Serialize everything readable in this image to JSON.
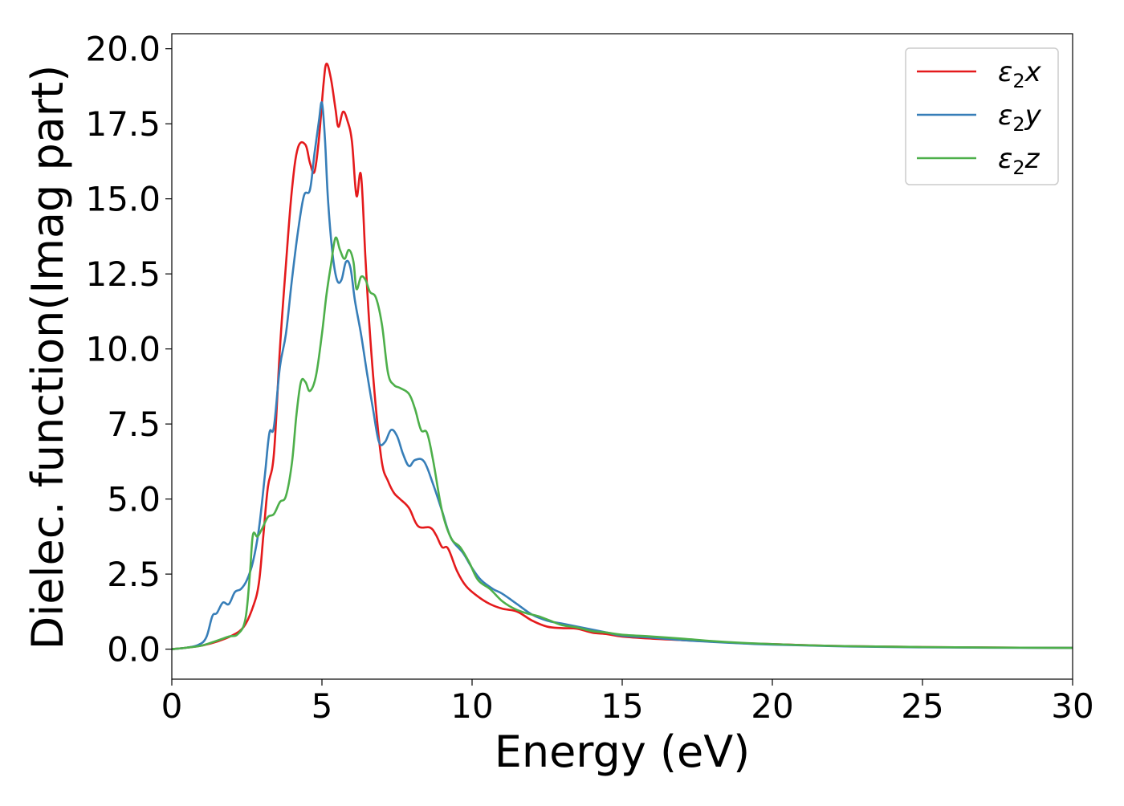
{
  "chart_data": {
    "type": "line",
    "title": "",
    "xlabel": "Energy (eV)",
    "ylabel": "Dielec. function(Imag part)",
    "xlim": [
      0,
      30
    ],
    "ylim": [
      -1,
      20.5
    ],
    "xticks": [
      0,
      5,
      10,
      15,
      20,
      25,
      30
    ],
    "yticks": [
      0.0,
      2.5,
      5.0,
      7.5,
      10.0,
      12.5,
      15.0,
      17.5,
      20.0
    ],
    "xtick_labels": [
      "0",
      "5",
      "10",
      "15",
      "20",
      "25",
      "30"
    ],
    "ytick_labels": [
      "0.0",
      "2.5",
      "5.0",
      "7.5",
      "10.0",
      "12.5",
      "15.0",
      "17.5",
      "20.0"
    ],
    "grid": false,
    "legend_position": "top-right",
    "series": [
      {
        "name_base": "ε",
        "name_sub": "2",
        "name_var": "x",
        "color": "#e41a1c",
        "points": [
          [
            0,
            0
          ],
          [
            0.5,
            0.05
          ],
          [
            1.0,
            0.12
          ],
          [
            1.5,
            0.25
          ],
          [
            2.0,
            0.45
          ],
          [
            2.4,
            0.75
          ],
          [
            2.7,
            1.4
          ],
          [
            2.9,
            2.2
          ],
          [
            3.05,
            3.8
          ],
          [
            3.2,
            5.4
          ],
          [
            3.4,
            6.5
          ],
          [
            3.6,
            10.0
          ],
          [
            3.8,
            12.8
          ],
          [
            4.0,
            15.3
          ],
          [
            4.2,
            16.7
          ],
          [
            4.45,
            16.8
          ],
          [
            4.6,
            16.2
          ],
          [
            4.75,
            15.9
          ],
          [
            4.9,
            17.0
          ],
          [
            5.05,
            18.8
          ],
          [
            5.15,
            19.5
          ],
          [
            5.3,
            19.0
          ],
          [
            5.45,
            18.0
          ],
          [
            5.55,
            17.4
          ],
          [
            5.7,
            17.9
          ],
          [
            5.85,
            17.6
          ],
          [
            6.0,
            16.9
          ],
          [
            6.15,
            15.1
          ],
          [
            6.3,
            15.8
          ],
          [
            6.45,
            13.0
          ],
          [
            6.6,
            10.5
          ],
          [
            6.8,
            8.0
          ],
          [
            7.0,
            6.2
          ],
          [
            7.2,
            5.6
          ],
          [
            7.4,
            5.2
          ],
          [
            7.6,
            5.0
          ],
          [
            7.9,
            4.7
          ],
          [
            8.2,
            4.1
          ],
          [
            8.6,
            4.05
          ],
          [
            8.8,
            3.8
          ],
          [
            9.0,
            3.4
          ],
          [
            9.2,
            3.35
          ],
          [
            9.5,
            2.6
          ],
          [
            9.8,
            2.1
          ],
          [
            10.2,
            1.75
          ],
          [
            10.6,
            1.5
          ],
          [
            11.0,
            1.35
          ],
          [
            11.5,
            1.25
          ],
          [
            12.0,
            0.95
          ],
          [
            12.5,
            0.75
          ],
          [
            13.0,
            0.7
          ],
          [
            13.5,
            0.68
          ],
          [
            14.0,
            0.55
          ],
          [
            14.5,
            0.5
          ],
          [
            15.0,
            0.42
          ],
          [
            16.0,
            0.35
          ],
          [
            17.0,
            0.3
          ],
          [
            18.0,
            0.25
          ],
          [
            19.0,
            0.2
          ],
          [
            20.0,
            0.17
          ],
          [
            22.0,
            0.11
          ],
          [
            25.0,
            0.07
          ],
          [
            30.0,
            0.04
          ]
        ]
      },
      {
        "name_base": "ε",
        "name_sub": "2",
        "name_var": "y",
        "color": "#377eb8",
        "points": [
          [
            0,
            0
          ],
          [
            0.5,
            0.05
          ],
          [
            0.9,
            0.15
          ],
          [
            1.15,
            0.4
          ],
          [
            1.35,
            1.1
          ],
          [
            1.5,
            1.2
          ],
          [
            1.7,
            1.55
          ],
          [
            1.9,
            1.5
          ],
          [
            2.1,
            1.9
          ],
          [
            2.3,
            2.0
          ],
          [
            2.5,
            2.3
          ],
          [
            2.7,
            2.9
          ],
          [
            2.9,
            4.0
          ],
          [
            3.1,
            5.8
          ],
          [
            3.25,
            7.2
          ],
          [
            3.4,
            7.4
          ],
          [
            3.6,
            9.4
          ],
          [
            3.8,
            10.5
          ],
          [
            4.0,
            12.3
          ],
          [
            4.2,
            13.9
          ],
          [
            4.4,
            15.1
          ],
          [
            4.6,
            15.3
          ],
          [
            4.75,
            16.5
          ],
          [
            4.9,
            17.6
          ],
          [
            5.0,
            18.2
          ],
          [
            5.1,
            17.0
          ],
          [
            5.2,
            15.0
          ],
          [
            5.35,
            13.2
          ],
          [
            5.5,
            12.3
          ],
          [
            5.65,
            12.3
          ],
          [
            5.8,
            12.9
          ],
          [
            5.95,
            12.7
          ],
          [
            6.1,
            11.6
          ],
          [
            6.3,
            10.5
          ],
          [
            6.5,
            9.2
          ],
          [
            6.7,
            8.0
          ],
          [
            6.9,
            6.9
          ],
          [
            7.1,
            6.9
          ],
          [
            7.3,
            7.3
          ],
          [
            7.5,
            7.1
          ],
          [
            7.7,
            6.5
          ],
          [
            7.9,
            6.1
          ],
          [
            8.1,
            6.3
          ],
          [
            8.4,
            6.25
          ],
          [
            8.7,
            5.5
          ],
          [
            9.0,
            4.6
          ],
          [
            9.3,
            3.7
          ],
          [
            9.7,
            3.2
          ],
          [
            10.0,
            2.7
          ],
          [
            10.3,
            2.3
          ],
          [
            10.7,
            2.0
          ],
          [
            11.0,
            1.85
          ],
          [
            11.5,
            1.5
          ],
          [
            12.0,
            1.15
          ],
          [
            12.5,
            0.95
          ],
          [
            13.0,
            0.85
          ],
          [
            13.5,
            0.75
          ],
          [
            14.0,
            0.65
          ],
          [
            14.5,
            0.55
          ],
          [
            15.0,
            0.45
          ],
          [
            16.0,
            0.38
          ],
          [
            17.0,
            0.3
          ],
          [
            18.0,
            0.24
          ],
          [
            19.0,
            0.19
          ],
          [
            20.0,
            0.15
          ],
          [
            22.0,
            0.1
          ],
          [
            25.0,
            0.06
          ],
          [
            30.0,
            0.04
          ]
        ]
      },
      {
        "name_base": "ε",
        "name_sub": "2",
        "name_var": "z",
        "color": "#4daf4a",
        "points": [
          [
            0,
            0
          ],
          [
            0.5,
            0.05
          ],
          [
            1.0,
            0.12
          ],
          [
            1.5,
            0.28
          ],
          [
            1.9,
            0.42
          ],
          [
            2.2,
            0.5
          ],
          [
            2.45,
            1.0
          ],
          [
            2.6,
            2.5
          ],
          [
            2.7,
            3.8
          ],
          [
            2.85,
            3.75
          ],
          [
            3.0,
            4.0
          ],
          [
            3.2,
            4.4
          ],
          [
            3.4,
            4.5
          ],
          [
            3.6,
            4.9
          ],
          [
            3.8,
            5.1
          ],
          [
            4.0,
            6.2
          ],
          [
            4.15,
            7.8
          ],
          [
            4.3,
            8.9
          ],
          [
            4.45,
            8.9
          ],
          [
            4.6,
            8.6
          ],
          [
            4.8,
            9.1
          ],
          [
            5.0,
            10.5
          ],
          [
            5.15,
            11.8
          ],
          [
            5.3,
            12.8
          ],
          [
            5.45,
            13.7
          ],
          [
            5.6,
            13.3
          ],
          [
            5.75,
            13.0
          ],
          [
            5.9,
            13.3
          ],
          [
            6.05,
            12.9
          ],
          [
            6.15,
            12.0
          ],
          [
            6.3,
            12.4
          ],
          [
            6.45,
            12.3
          ],
          [
            6.6,
            11.9
          ],
          [
            6.8,
            11.7
          ],
          [
            7.0,
            10.8
          ],
          [
            7.2,
            9.2
          ],
          [
            7.4,
            8.8
          ],
          [
            7.6,
            8.7
          ],
          [
            7.9,
            8.5
          ],
          [
            8.1,
            8.0
          ],
          [
            8.3,
            7.3
          ],
          [
            8.5,
            7.2
          ],
          [
            8.7,
            6.3
          ],
          [
            9.0,
            4.6
          ],
          [
            9.3,
            3.7
          ],
          [
            9.6,
            3.4
          ],
          [
            9.9,
            2.9
          ],
          [
            10.2,
            2.3
          ],
          [
            10.6,
            2.0
          ],
          [
            11.0,
            1.6
          ],
          [
            11.4,
            1.35
          ],
          [
            11.8,
            1.2
          ],
          [
            12.2,
            1.1
          ],
          [
            12.6,
            0.95
          ],
          [
            13.0,
            0.8
          ],
          [
            13.5,
            0.72
          ],
          [
            14.0,
            0.6
          ],
          [
            14.5,
            0.55
          ],
          [
            15.0,
            0.48
          ],
          [
            16.0,
            0.42
          ],
          [
            17.0,
            0.35
          ],
          [
            18.0,
            0.27
          ],
          [
            19.0,
            0.21
          ],
          [
            20.0,
            0.17
          ],
          [
            22.0,
            0.11
          ],
          [
            25.0,
            0.07
          ],
          [
            30.0,
            0.04
          ]
        ]
      }
    ]
  }
}
